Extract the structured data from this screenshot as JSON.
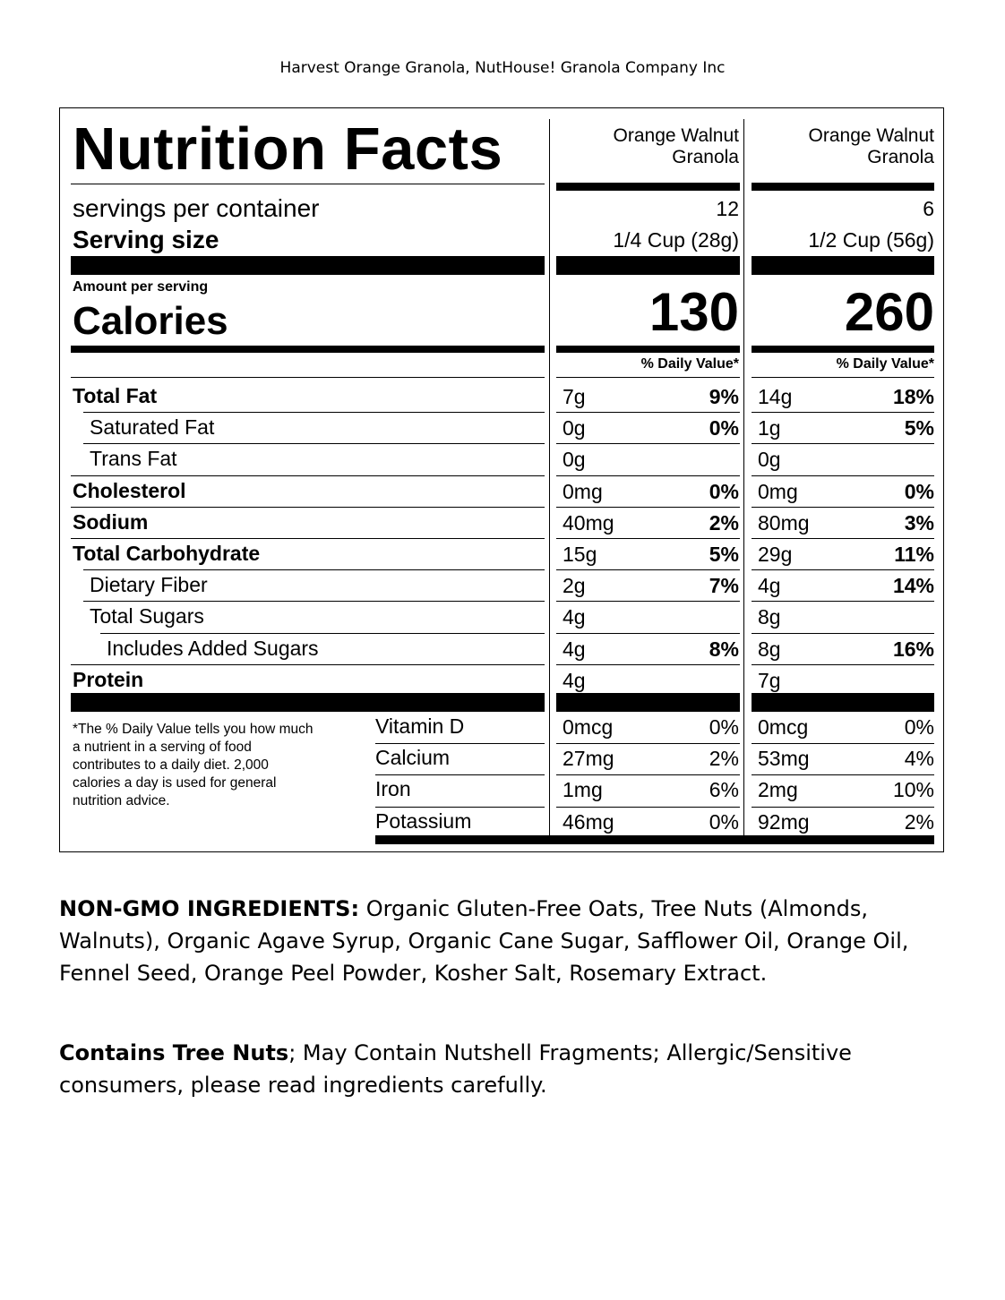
{
  "header": "Harvest Orange Granola, NutHouse! Granola Company Inc",
  "label": {
    "title": "Nutrition Facts",
    "servings_label": "servings per container",
    "serving_size_label": "Serving size",
    "amount_per_serving": "Amount per serving",
    "calories_label": "Calories",
    "dv_header": "% Daily Value*",
    "columns": [
      {
        "name_line1": "Orange Walnut",
        "name_line2": "Granola",
        "servings": "12",
        "serving_size": "1/4 Cup (28g)",
        "calories": "130"
      },
      {
        "name_line1": "Orange Walnut",
        "name_line2": "Granola",
        "servings": "6",
        "serving_size": "1/2 Cup (56g)",
        "calories": "260"
      }
    ],
    "nutrients": [
      {
        "label": "Total Fat",
        "c1_amt": "7g",
        "c1_dv": "9%",
        "c2_amt": "14g",
        "c2_dv": "18%"
      },
      {
        "label": "Saturated Fat",
        "c1_amt": "0g",
        "c1_dv": "0%",
        "c2_amt": "1g",
        "c2_dv": "5%"
      },
      {
        "label": "Trans Fat",
        "c1_amt": "0g",
        "c1_dv": "",
        "c2_amt": "0g",
        "c2_dv": ""
      },
      {
        "label": "Cholesterol",
        "c1_amt": "0mg",
        "c1_dv": "0%",
        "c2_amt": "0mg",
        "c2_dv": "0%"
      },
      {
        "label": "Sodium",
        "c1_amt": "40mg",
        "c1_dv": "2%",
        "c2_amt": "80mg",
        "c2_dv": "3%"
      },
      {
        "label": "Total Carbohydrate",
        "c1_amt": "15g",
        "c1_dv": "5%",
        "c2_amt": "29g",
        "c2_dv": "11%"
      },
      {
        "label": "Dietary Fiber",
        "c1_amt": "2g",
        "c1_dv": "7%",
        "c2_amt": "4g",
        "c2_dv": "14%"
      },
      {
        "label": "Total Sugars",
        "c1_amt": "4g",
        "c1_dv": "",
        "c2_amt": "8g",
        "c2_dv": ""
      },
      {
        "label": "Includes Added Sugars",
        "c1_amt": "4g",
        "c1_dv": "8%",
        "c2_amt": "8g",
        "c2_dv": "16%"
      },
      {
        "label": "Protein",
        "c1_amt": "4g",
        "c1_dv": "",
        "c2_amt": "7g",
        "c2_dv": ""
      }
    ],
    "vitamins": [
      {
        "label": "Vitamin D",
        "c1_amt": "0mcg",
        "c1_dv": "0%",
        "c2_amt": "0mcg",
        "c2_dv": "0%"
      },
      {
        "label": "Calcium",
        "c1_amt": "27mg",
        "c1_dv": "2%",
        "c2_amt": "53mg",
        "c2_dv": "4%"
      },
      {
        "label": "Iron",
        "c1_amt": "1mg",
        "c1_dv": "6%",
        "c2_amt": "2mg",
        "c2_dv": "10%"
      },
      {
        "label": "Potassium",
        "c1_amt": "46mg",
        "c1_dv": "0%",
        "c2_amt": "92mg",
        "c2_dv": "2%"
      }
    ],
    "footnote": [
      "*The % Daily Value tells you how much",
      "a nutrient in a serving of food",
      "contributes to a daily diet. 2,000",
      "calories a day is used for general",
      "nutrition advice."
    ]
  },
  "ingredients": {
    "bold_label": "NON-GMO INGREDIENTS:",
    "line1_rest": " Organic Gluten-Free Oats, Tree Nuts (Almonds,",
    "line2": "Walnuts), Organic Agave Syrup, Organic Cane Sugar, Safflower Oil, Orange Oil,",
    "line3": "Fennel Seed, Orange Peel Powder, Kosher Salt, Rosemary Extract."
  },
  "allergen": {
    "bold_label": "Contains Tree Nuts",
    "line1_rest": "; May Contain Nutshell Fragments; Allergic/Sensitive",
    "line2": "consumers, please read ingredients carefully."
  }
}
